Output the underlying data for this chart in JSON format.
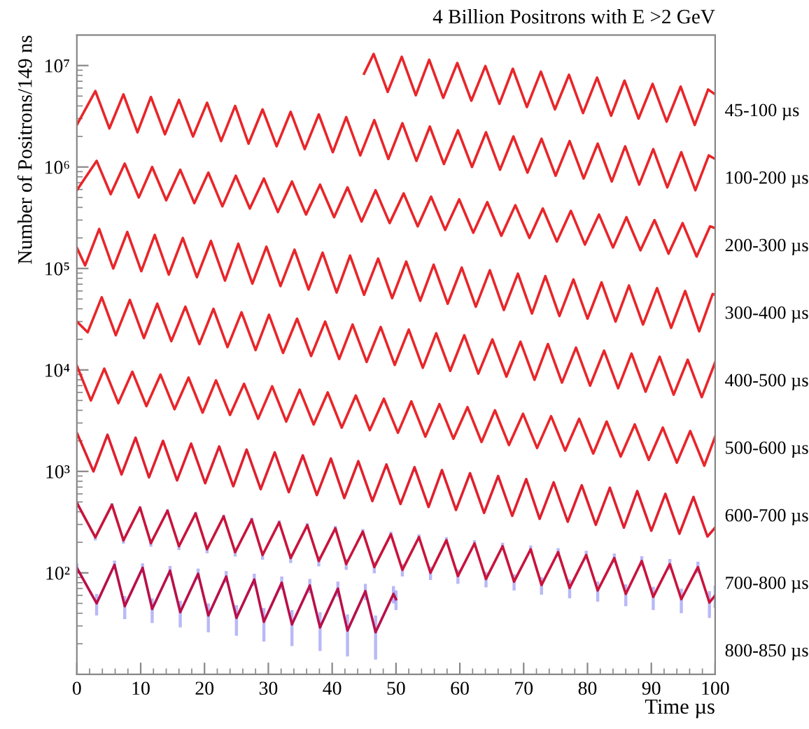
{
  "chart_data": {
    "type": "line",
    "title": "4 Billion Positrons with E >2 GeV",
    "xlabel": "Time µs",
    "ylabel": "Number of Positrons/149 ns",
    "log": "y",
    "xlim": [
      0,
      100
    ],
    "xticks": [
      0,
      10,
      20,
      30,
      40,
      50,
      60,
      70,
      80,
      90,
      100
    ],
    "ylim": [
      10,
      20000000
    ],
    "yticks": [
      {
        "value": 100,
        "label": "10²"
      },
      {
        "value": 1000,
        "label": "10³"
      },
      {
        "value": 10000,
        "label": "10⁴"
      },
      {
        "value": 100000,
        "label": "10⁵"
      },
      {
        "value": 1000000,
        "label": "10⁶"
      },
      {
        "value": 10000000,
        "label": "10⁷"
      }
    ],
    "grid": false,
    "legend": false,
    "marker": "none",
    "line_style": "solid",
    "series": [
      {
        "name": "45-100 µs",
        "color": "#e8262a",
        "x": [
          45,
          46.5,
          48.7,
          50.9,
          53.1,
          55.2,
          57.4,
          59.6,
          61.8,
          64.0,
          66.2,
          68.3,
          70.5,
          72.7,
          74.9,
          77.1,
          79.3,
          81.5,
          83.7,
          85.8,
          88.0,
          90.2,
          92.4,
          94.6,
          96.8,
          98.9,
          100
        ],
        "values": [
          8300000.0,
          13000000.0,
          5500000.0,
          12200000.0,
          5100000.0,
          11400000.0,
          4800000.0,
          10600000.0,
          4500000.0,
          9900000.0,
          4200000.0,
          9300000.0,
          3900000.0,
          8700000.0,
          3700000.0,
          8100000.0,
          3400000.0,
          7600000.0,
          3200000.0,
          7100000.0,
          3000000.0,
          6600000.0,
          2800000.0,
          6200000.0,
          2600000.0,
          5800000.0,
          5200000.0
        ]
      },
      {
        "name": "100-200 µs",
        "color": "#e8262a",
        "x": [
          0,
          2.9,
          5.1,
          7.3,
          9.5,
          11.6,
          13.8,
          16.0,
          18.2,
          20.4,
          22.6,
          24.8,
          26.9,
          29.1,
          31.3,
          33.5,
          35.7,
          37.9,
          40.1,
          42.2,
          44.4,
          46.6,
          48.8,
          51.0,
          53.2,
          55.3,
          57.5,
          59.7,
          61.9,
          64.1,
          66.3,
          68.4,
          70.6,
          72.8,
          75.0,
          77.2,
          79.4,
          81.6,
          83.8,
          85.9,
          88.1,
          90.3,
          92.5,
          94.7,
          96.9,
          99.0,
          100
        ],
        "values": [
          2600000.0,
          5600000.0,
          2400000.0,
          5200000.0,
          2200000.0,
          4900000.0,
          2100000.0,
          4600000.0,
          2000000.0,
          4300000.0,
          1800000.0,
          4000000.0,
          1700000.0,
          3700000.0,
          1600000.0,
          3500000.0,
          1500000.0,
          3300000.0,
          1400000.0,
          3100000.0,
          1300000.0,
          2900000.0,
          1200000.0,
          2700000.0,
          1150000.0,
          2500000.0,
          1070000.0,
          2300000.0,
          1000000.0,
          2200000.0,
          940000.0,
          2000000.0,
          880000.0,
          1900000.0,
          820000.0,
          1800000.0,
          770000.0,
          1700000.0,
          720000.0,
          1600000.0,
          670000.0,
          1500000.0,
          630000.0,
          1400000.0,
          590000.0,
          1300000.0,
          1200000.0
        ]
      },
      {
        "name": "200-300 µs",
        "color": "#e8262a",
        "x": [
          0,
          3.1,
          5.3,
          7.5,
          9.7,
          11.8,
          14.0,
          16.2,
          18.4,
          20.6,
          22.8,
          24.9,
          27.1,
          29.3,
          31.5,
          33.7,
          35.9,
          38.1,
          40.3,
          42.4,
          44.6,
          46.8,
          49.0,
          51.2,
          53.4,
          55.5,
          57.7,
          59.9,
          62.1,
          64.3,
          66.5,
          68.7,
          70.9,
          73.0,
          75.2,
          77.4,
          79.6,
          81.8,
          84.0,
          86.1,
          88.3,
          90.5,
          92.7,
          94.9,
          97.1,
          99.2,
          100
        ],
        "values": [
          590000.0,
          1150000.0,
          540000.0,
          1080000.0,
          500000.0,
          1000000.0,
          470000.0,
          940000.0,
          440000.0,
          880000.0,
          410000.0,
          820000.0,
          390000.0,
          770000.0,
          360000.0,
          720000.0,
          340000.0,
          670000.0,
          320000.0,
          630000.0,
          290000.0,
          590000.0,
          280000.0,
          550000.0,
          260000.0,
          510000.0,
          240000.0,
          480000.0,
          225000.0,
          450000.0,
          210000.0,
          420000.0,
          200000.0,
          390000.0,
          184000.0,
          370000.0,
          172000.0,
          340000.0,
          161000.0,
          320000.0,
          151000.0,
          300000.0,
          140000.0,
          280000.0,
          131000.0,
          260000.0,
          250000.0
        ]
      },
      {
        "name": "300-400 µs",
        "color": "#e8262a",
        "x": [
          0,
          1.3,
          3.5,
          5.7,
          7.9,
          10.1,
          12.2,
          14.4,
          16.6,
          18.8,
          21.0,
          23.2,
          25.3,
          27.5,
          29.7,
          31.9,
          34.1,
          36.3,
          38.5,
          40.7,
          42.8,
          45.0,
          47.2,
          49.4,
          51.6,
          53.8,
          55.9,
          58.1,
          60.3,
          62.5,
          64.7,
          66.9,
          69.1,
          71.3,
          73.4,
          75.6,
          77.8,
          80.0,
          82.2,
          84.4,
          86.5,
          88.7,
          90.9,
          93.1,
          95.3,
          97.5,
          99.6,
          100
        ],
        "values": [
          160000.0,
          107000.0,
          245000.0,
          100000.0,
          229000.0,
          94000.0,
          214000.0,
          87000.0,
          200000.0,
          82000.0,
          187000.0,
          76000.0,
          175000.0,
          71000.0,
          164000.0,
          67000.0,
          153000.0,
          62000.0,
          143000.0,
          58000.0,
          134000.0,
          55000.0,
          125000.0,
          51000.0,
          117000.0,
          48000.0,
          109000.0,
          45000.0,
          102000.0,
          42000.0,
          96000.0,
          39000.0,
          89000.0,
          36000.0,
          84000.0,
          34000.0,
          78000.0,
          32000.0,
          73000.0,
          30000.0,
          68000.0,
          28000.0,
          64000.0,
          26000.0,
          60000.0,
          24000.0,
          56000.0,
          55000.0
        ]
      },
      {
        "name": "400-500 µs",
        "color": "#e8262a",
        "x": [
          0,
          1.7,
          3.9,
          6.1,
          8.3,
          10.5,
          12.6,
          14.8,
          17.0,
          19.2,
          21.4,
          23.6,
          25.8,
          28.0,
          30.1,
          32.3,
          34.5,
          36.7,
          38.9,
          41.1,
          43.2,
          45.4,
          47.6,
          49.8,
          52.0,
          54.2,
          56.3,
          58.5,
          60.7,
          62.9,
          65.1,
          67.3,
          69.5,
          71.7,
          73.8,
          76.0,
          78.2,
          80.4,
          82.6,
          84.8,
          86.9,
          89.1,
          91.3,
          93.5,
          95.7,
          97.9,
          100
        ],
        "values": [
          30000.0,
          23500.0,
          52000.0,
          22000.0,
          49000.0,
          20600.0,
          45000.0,
          19200.0,
          42000.0,
          18000.0,
          40000.0,
          16800.0,
          37000.0,
          15700.0,
          35000.0,
          14700.0,
          32000.0,
          13700.0,
          30000.0,
          12800.0,
          28000.0,
          12000.0,
          26500.0,
          11200.0,
          25000.0,
          10500.0,
          23000.0,
          9800.0,
          22000.0,
          9200.0,
          20000.0,
          8600.0,
          19000.0,
          8000.0,
          18000.0,
          7500.0,
          16600.0,
          7000.0,
          15500.0,
          6600.0,
          14500.0,
          6100.0,
          13500.0,
          5700.0,
          12600.0,
          5400.0,
          11900.0
        ]
      },
      {
        "name": "500-600 µs",
        "color": "#e8262a",
        "x": [
          0,
          2.2,
          4.3,
          6.5,
          8.7,
          10.9,
          13.1,
          15.3,
          17.5,
          19.7,
          21.8,
          24.0,
          26.2,
          28.4,
          30.6,
          32.8,
          34.9,
          37.1,
          39.3,
          41.5,
          43.7,
          45.9,
          48.1,
          50.3,
          52.4,
          54.6,
          56.8,
          59.0,
          61.2,
          63.4,
          65.5,
          67.7,
          69.9,
          72.1,
          74.3,
          76.5,
          78.7,
          80.9,
          83.0,
          85.2,
          87.4,
          89.6,
          91.8,
          94.0,
          96.1,
          98.3,
          100
        ],
        "values": [
          11000.0,
          5000.0,
          10300.0,
          4700.0,
          9600.0,
          4400.0,
          9000.0,
          4100.0,
          8400.0,
          3800.0,
          7900.0,
          3600.0,
          7300.0,
          3300.0,
          6900.0,
          3100.0,
          6400.0,
          2900.0,
          6000.0,
          2700.0,
          5600.0,
          2550.0,
          5200.0,
          2400.0,
          4900.0,
          2200.0,
          4600.0,
          2100.0,
          4300.0,
          1950.0,
          4000.0,
          1820.0,
          3700.0,
          1700.0,
          3500.0,
          1600.0,
          3300.0,
          1500.0,
          3100.0,
          1400.0,
          2900.0,
          1300.0,
          2700.0,
          1220.0,
          2500.0,
          1140.0,
          2200.0
        ]
      },
      {
        "name": "600-700 µs",
        "color": "#e0202e",
        "x": [
          0,
          2.6,
          4.8,
          7.0,
          9.2,
          11.3,
          13.5,
          15.7,
          17.9,
          20.1,
          22.3,
          24.5,
          26.6,
          28.8,
          31.0,
          33.2,
          35.4,
          37.6,
          39.8,
          41.9,
          44.1,
          46.3,
          48.5,
          50.7,
          52.9,
          55.1,
          57.2,
          59.4,
          61.6,
          63.8,
          66.0,
          68.2,
          70.4,
          72.5,
          74.7,
          76.9,
          79.1,
          81.3,
          83.5,
          85.7,
          87.8,
          90.0,
          92.2,
          94.4,
          96.6,
          98.8,
          100
        ],
        "values": [
          2400,
          1000,
          2300,
          935,
          2150,
          874,
          2000,
          817,
          1880,
          764,
          1760,
          714,
          1640,
          668,
          1540,
          624,
          1440,
          584,
          1340,
          546,
          1260,
          510,
          1170,
          477,
          1100,
          446,
          1030,
          417,
          960,
          390,
          900,
          365,
          840,
          341,
          780,
          319,
          730,
          298,
          690,
          279,
          640,
          260,
          600,
          243,
          560,
          228,
          280
        ]
      },
      {
        "name": "700-800 µs",
        "color": "#c8143c",
        "x": [
          0,
          2.9,
          5.5,
          7.3,
          9.9,
          11.6,
          14.2,
          16.0,
          18.6,
          20.4,
          23.0,
          24.8,
          27.4,
          29.1,
          31.7,
          33.5,
          36.1,
          37.9,
          40.5,
          42.2,
          44.8,
          46.6,
          49.2,
          51.0,
          53.6,
          55.4,
          57.9,
          59.7,
          62.3,
          64.1,
          66.7,
          68.5,
          71.1,
          72.8,
          75.4,
          77.2,
          79.8,
          81.6,
          84.2,
          86.0,
          88.5,
          90.3,
          92.9,
          94.7,
          97.3,
          99.1,
          100
        ],
        "values": [
          490,
          224,
          470,
          209,
          440,
          196,
          410,
          183,
          385,
          171,
          360,
          160,
          335,
          150,
          315,
          140,
          295,
          131,
          275,
          122,
          255,
          114,
          240,
          107,
          225,
          100,
          210,
          93,
          195,
          87,
          183,
          82,
          171,
          76,
          160,
          71,
          150,
          67,
          140,
          62,
          131,
          58,
          122,
          55,
          114,
          51,
          60
        ],
        "errors": [
          15,
          15,
          15,
          15,
          15,
          15,
          15,
          15,
          15,
          15,
          15,
          15,
          15,
          15,
          15,
          15,
          15,
          15,
          15,
          15,
          15,
          15,
          15,
          15,
          15,
          15,
          15,
          15,
          15,
          15,
          15,
          15,
          15,
          15,
          15,
          15,
          15,
          15,
          15,
          15,
          15,
          15,
          15,
          15,
          15,
          15,
          15
        ]
      },
      {
        "name": "800-850 µs",
        "color": "#b8104a",
        "x": [
          0,
          3.1,
          5.9,
          7.5,
          10.3,
          11.8,
          14.6,
          16.2,
          19.0,
          20.6,
          23.4,
          25.0,
          27.8,
          29.3,
          32.1,
          33.7,
          36.5,
          38.1,
          40.9,
          42.4,
          45.2,
          46.8,
          49.6,
          50
        ],
        "values": [
          112,
          50,
          120,
          47,
          112,
          44,
          105,
          41,
          98,
          38,
          92,
          36,
          86,
          33,
          80,
          31,
          75,
          29,
          70,
          27,
          66,
          26,
          62,
          55
        ],
        "errors": [
          12,
          12,
          12,
          12,
          12,
          12,
          12,
          12,
          12,
          12,
          12,
          12,
          12,
          12,
          12,
          12,
          12,
          12,
          12,
          12,
          12,
          12,
          12,
          12
        ]
      }
    ]
  }
}
